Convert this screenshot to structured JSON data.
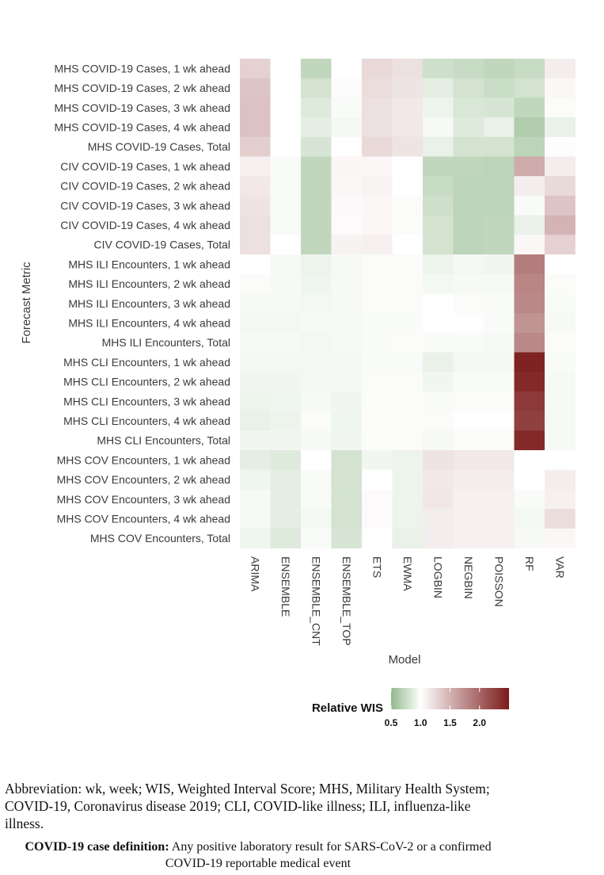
{
  "chart_data": {
    "type": "heatmap",
    "xlabel": "Model",
    "ylabel": "Forecast Metric",
    "x": [
      "ARIMA",
      "ENSEMBLE",
      "ENSEMBLE_CNT",
      "ENSEMBLE_TOP",
      "ETS",
      "EWMA",
      "LOGBIN",
      "NEGBIN",
      "POISSON",
      "RF",
      "VAR"
    ],
    "y": [
      "MHS COVID-19 Cases, 1 wk ahead",
      "MHS COVID-19 Cases, 2 wk ahead",
      "MHS COVID-19 Cases, 3 wk ahead",
      "MHS COVID-19 Cases, 4 wk ahead",
      "MHS COVID-19 Cases, Total",
      "CIV COVID-19 Cases, 1 wk ahead",
      "CIV COVID-19 Cases, 2 wk ahead",
      "CIV COVID-19 Cases, 3 wk ahead",
      "CIV COVID-19 Cases, 4 wk ahead",
      "CIV COVID-19 Cases, Total",
      "MHS ILI Encounters, 1 wk ahead",
      "MHS ILI Encounters, 2 wk ahead",
      "MHS ILI Encounters, 3 wk ahead",
      "MHS ILI Encounters, 4 wk ahead",
      "MHS ILI Encounters, Total",
      "MHS CLI Encounters, 1 wk ahead",
      "MHS CLI Encounters, 2 wk ahead",
      "MHS CLI Encounters, 3 wk ahead",
      "MHS CLI Encounters, 4 wk ahead",
      "MHS CLI Encounters, Total",
      "MHS COV Encounters, 1 wk ahead",
      "MHS COV Encounters, 2 wk ahead",
      "MHS COV Encounters, 3 wk ahead",
      "MHS COV Encounters, 4 wk ahead",
      "MHS COV Encounters, Total"
    ],
    "values": [
      [
        1.3,
        1.0,
        0.72,
        1.0,
        1.25,
        1.2,
        0.78,
        0.75,
        0.72,
        0.75,
        1.12
      ],
      [
        1.38,
        1.0,
        0.8,
        1.02,
        1.22,
        1.18,
        0.88,
        0.8,
        0.76,
        0.8,
        1.05
      ],
      [
        1.4,
        1.0,
        0.85,
        0.97,
        1.2,
        1.15,
        0.92,
        0.83,
        0.82,
        0.72,
        0.98
      ],
      [
        1.4,
        1.0,
        0.88,
        0.95,
        1.2,
        1.15,
        0.96,
        0.85,
        0.9,
        0.65,
        0.9
      ],
      [
        1.32,
        1.0,
        0.82,
        0.99,
        1.25,
        1.18,
        0.9,
        0.8,
        0.8,
        0.7,
        1.01
      ],
      [
        1.1,
        0.97,
        0.72,
        1.06,
        1.05,
        1.0,
        0.72,
        0.72,
        0.7,
        1.55,
        1.12
      ],
      [
        1.15,
        0.97,
        0.72,
        1.05,
        1.07,
        1.0,
        0.75,
        0.7,
        0.7,
        1.12,
        1.25
      ],
      [
        1.18,
        0.97,
        0.72,
        1.04,
        1.05,
        0.98,
        0.78,
        0.7,
        0.7,
        0.97,
        1.38
      ],
      [
        1.2,
        0.97,
        0.72,
        1.03,
        1.05,
        0.98,
        0.8,
        0.7,
        0.72,
        0.9,
        1.5
      ],
      [
        1.2,
        1.0,
        0.72,
        1.08,
        1.1,
        1.0,
        0.8,
        0.7,
        0.72,
        1.05,
        1.3
      ],
      [
        1.0,
        0.96,
        0.92,
        0.96,
        0.98,
        0.98,
        0.92,
        0.95,
        0.94,
        1.85,
        1.0
      ],
      [
        0.98,
        0.96,
        0.93,
        0.96,
        0.98,
        0.98,
        0.95,
        0.96,
        0.96,
        1.8,
        0.98
      ],
      [
        0.96,
        0.96,
        0.95,
        0.96,
        0.98,
        0.98,
        0.99,
        0.98,
        0.97,
        1.78,
        0.97
      ],
      [
        0.95,
        0.95,
        0.96,
        0.96,
        0.97,
        0.97,
        1.0,
        0.99,
        0.97,
        1.7,
        0.96
      ],
      [
        0.96,
        0.96,
        0.95,
        0.96,
        0.97,
        0.98,
        0.97,
        0.97,
        0.96,
        1.78,
        0.98
      ],
      [
        0.95,
        0.95,
        0.95,
        0.95,
        0.97,
        0.97,
        0.9,
        0.95,
        0.95,
        2.45,
        0.97
      ],
      [
        0.94,
        0.94,
        0.95,
        0.95,
        0.98,
        0.98,
        0.94,
        0.97,
        0.97,
        2.4,
        0.96
      ],
      [
        0.92,
        0.93,
        0.96,
        0.94,
        0.98,
        0.98,
        0.97,
        0.98,
        0.98,
        2.3,
        0.96
      ],
      [
        0.9,
        0.92,
        0.98,
        0.93,
        0.98,
        0.98,
        0.98,
        0.99,
        0.99,
        2.25,
        0.96
      ],
      [
        0.94,
        0.94,
        0.96,
        0.94,
        0.98,
        0.98,
        0.96,
        0.98,
        0.98,
        2.4,
        0.96
      ],
      [
        0.88,
        0.85,
        1.0,
        0.8,
        0.94,
        0.92,
        1.18,
        1.15,
        1.15,
        1.0,
        1.0
      ],
      [
        0.93,
        0.88,
        0.97,
        0.8,
        1.0,
        0.92,
        1.15,
        1.12,
        1.12,
        1.0,
        1.12
      ],
      [
        0.96,
        0.88,
        0.97,
        0.8,
        1.03,
        0.92,
        1.16,
        1.1,
        1.1,
        0.97,
        1.1
      ],
      [
        0.96,
        0.88,
        0.95,
        0.8,
        1.03,
        0.92,
        1.12,
        1.1,
        1.1,
        0.95,
        1.22
      ],
      [
        0.93,
        0.85,
        0.97,
        0.82,
        1.0,
        0.9,
        1.12,
        1.1,
        1.1,
        0.96,
        1.05
      ]
    ],
    "na_cells": [
      [
        20,
        9
      ],
      [
        20,
        10
      ],
      [
        21,
        9
      ]
    ],
    "legend": {
      "title": "Relative WIS",
      "ticks": [
        0.5,
        1.0,
        1.5,
        2.0
      ],
      "tick_labels": [
        "0.5",
        "1.0",
        "1.5",
        "2.0"
      ],
      "range": [
        0.5,
        2.5
      ],
      "low_color": "#90b88a",
      "mid_color": "#ffffff",
      "high_color": "#7b1a1a",
      "midpoint": 1.0,
      "placement": "bottom"
    }
  },
  "footnote": {
    "abbreviations": "Abbreviation: wk, week; WIS, Weighted Interval Score; MHS, Military Health System; COVID-19, Coronavirus disease 2019; CLI, COVID-like illness; ILI, influenza-like illness.",
    "definition_label": "COVID-19 case definition:",
    "definition_text": " Any positive laboratory result for SARS-CoV-2 or a confirmed COVID-19 reportable medical event"
  }
}
